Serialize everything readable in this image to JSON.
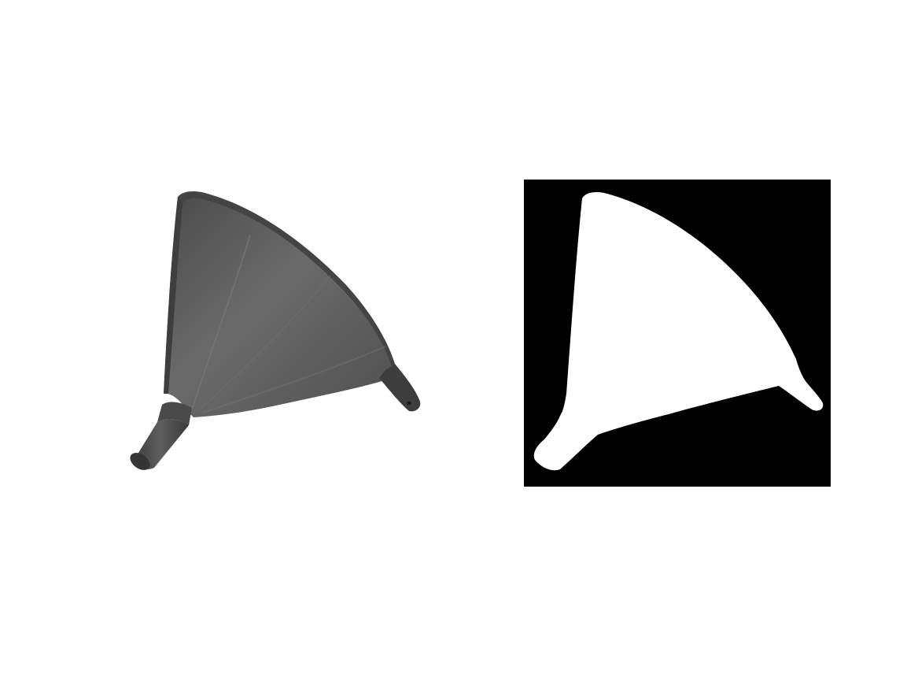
{
  "figure": {
    "panels": [
      {
        "id": "photo",
        "kind": "grayscale photo of a funnel on white background"
      },
      {
        "id": "mask",
        "kind": "binary segmentation mask of the funnel"
      }
    ]
  },
  "colors": {
    "background": "#ffffff",
    "funnel_body": "#5b5b5b",
    "funnel_dark": "#3a3a3a",
    "funnel_highlight": "#7a7a7a",
    "mask_background": "#000000",
    "mask_foreground": "#ffffff"
  }
}
